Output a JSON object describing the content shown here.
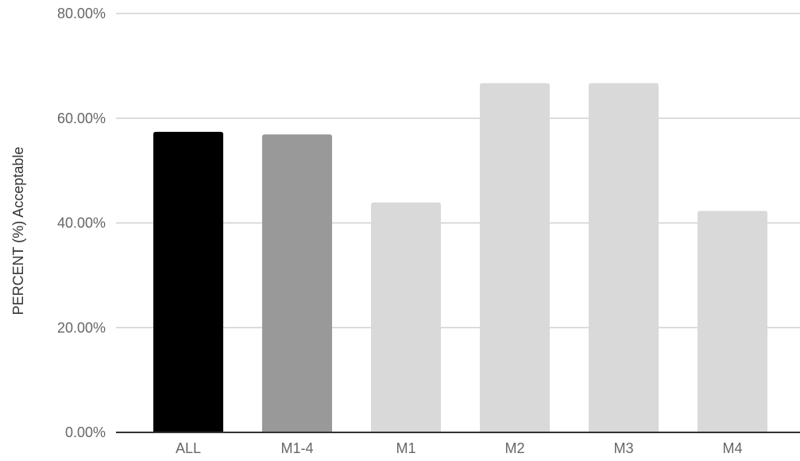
{
  "chart_data": {
    "type": "bar",
    "title": "",
    "xlabel": "",
    "ylabel": "PERCENT (%) Acceptable",
    "categories": [
      "ALL",
      "M1-4",
      "M1",
      "M2",
      "M3",
      "M4"
    ],
    "values": [
      57.4,
      56.9,
      43.9,
      66.7,
      66.7,
      42.3
    ],
    "bar_colors": [
      "#000000",
      "#999999",
      "#d9d9d9",
      "#d9d9d9",
      "#d9d9d9",
      "#d9d9d9"
    ],
    "ylim": [
      0,
      80
    ],
    "yticks": [
      0,
      20,
      40,
      60,
      80
    ],
    "ytick_labels": [
      "0.00%",
      "20.00%",
      "40.00%",
      "60.00%",
      "80.00%"
    ],
    "grid": true,
    "legend": "none"
  }
}
